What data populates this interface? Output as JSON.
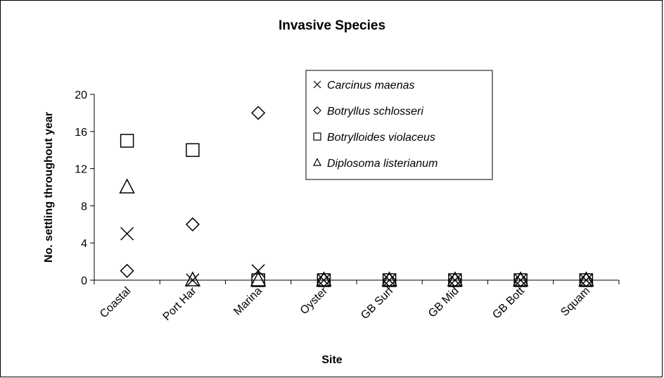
{
  "chart_data": {
    "type": "scatter",
    "title": "Invasive Species",
    "xlabel": "Site",
    "ylabel": "No. settling throughout year",
    "categories": [
      "Coastal",
      "Port Har",
      "Marina",
      "Oyster",
      "GB Surf",
      "GB Mid",
      "GB Bott",
      "Squam"
    ],
    "series": [
      {
        "name": "Carcinus maenas",
        "marker": "x",
        "color": "#000000",
        "values": [
          5,
          0,
          1,
          0,
          0,
          0,
          0,
          0
        ]
      },
      {
        "name": "Botryllus schlosseri",
        "marker": "diamond",
        "color": "#000000",
        "values": [
          1,
          6,
          18,
          0,
          0,
          0,
          0,
          0
        ]
      },
      {
        "name": "Botrylloides violaceus",
        "marker": "square",
        "color": "#000000",
        "values": [
          15,
          14,
          0,
          0,
          0,
          0,
          0,
          0
        ]
      },
      {
        "name": "Diplosoma listerianum",
        "marker": "triangle",
        "color": "#000000",
        "values": [
          10,
          0,
          0,
          0,
          0,
          0,
          0,
          0
        ]
      }
    ],
    "ylim": [
      0,
      20
    ],
    "yticks": [
      0,
      4,
      8,
      12,
      16,
      20
    ],
    "grid": false,
    "legend": "top-right"
  }
}
